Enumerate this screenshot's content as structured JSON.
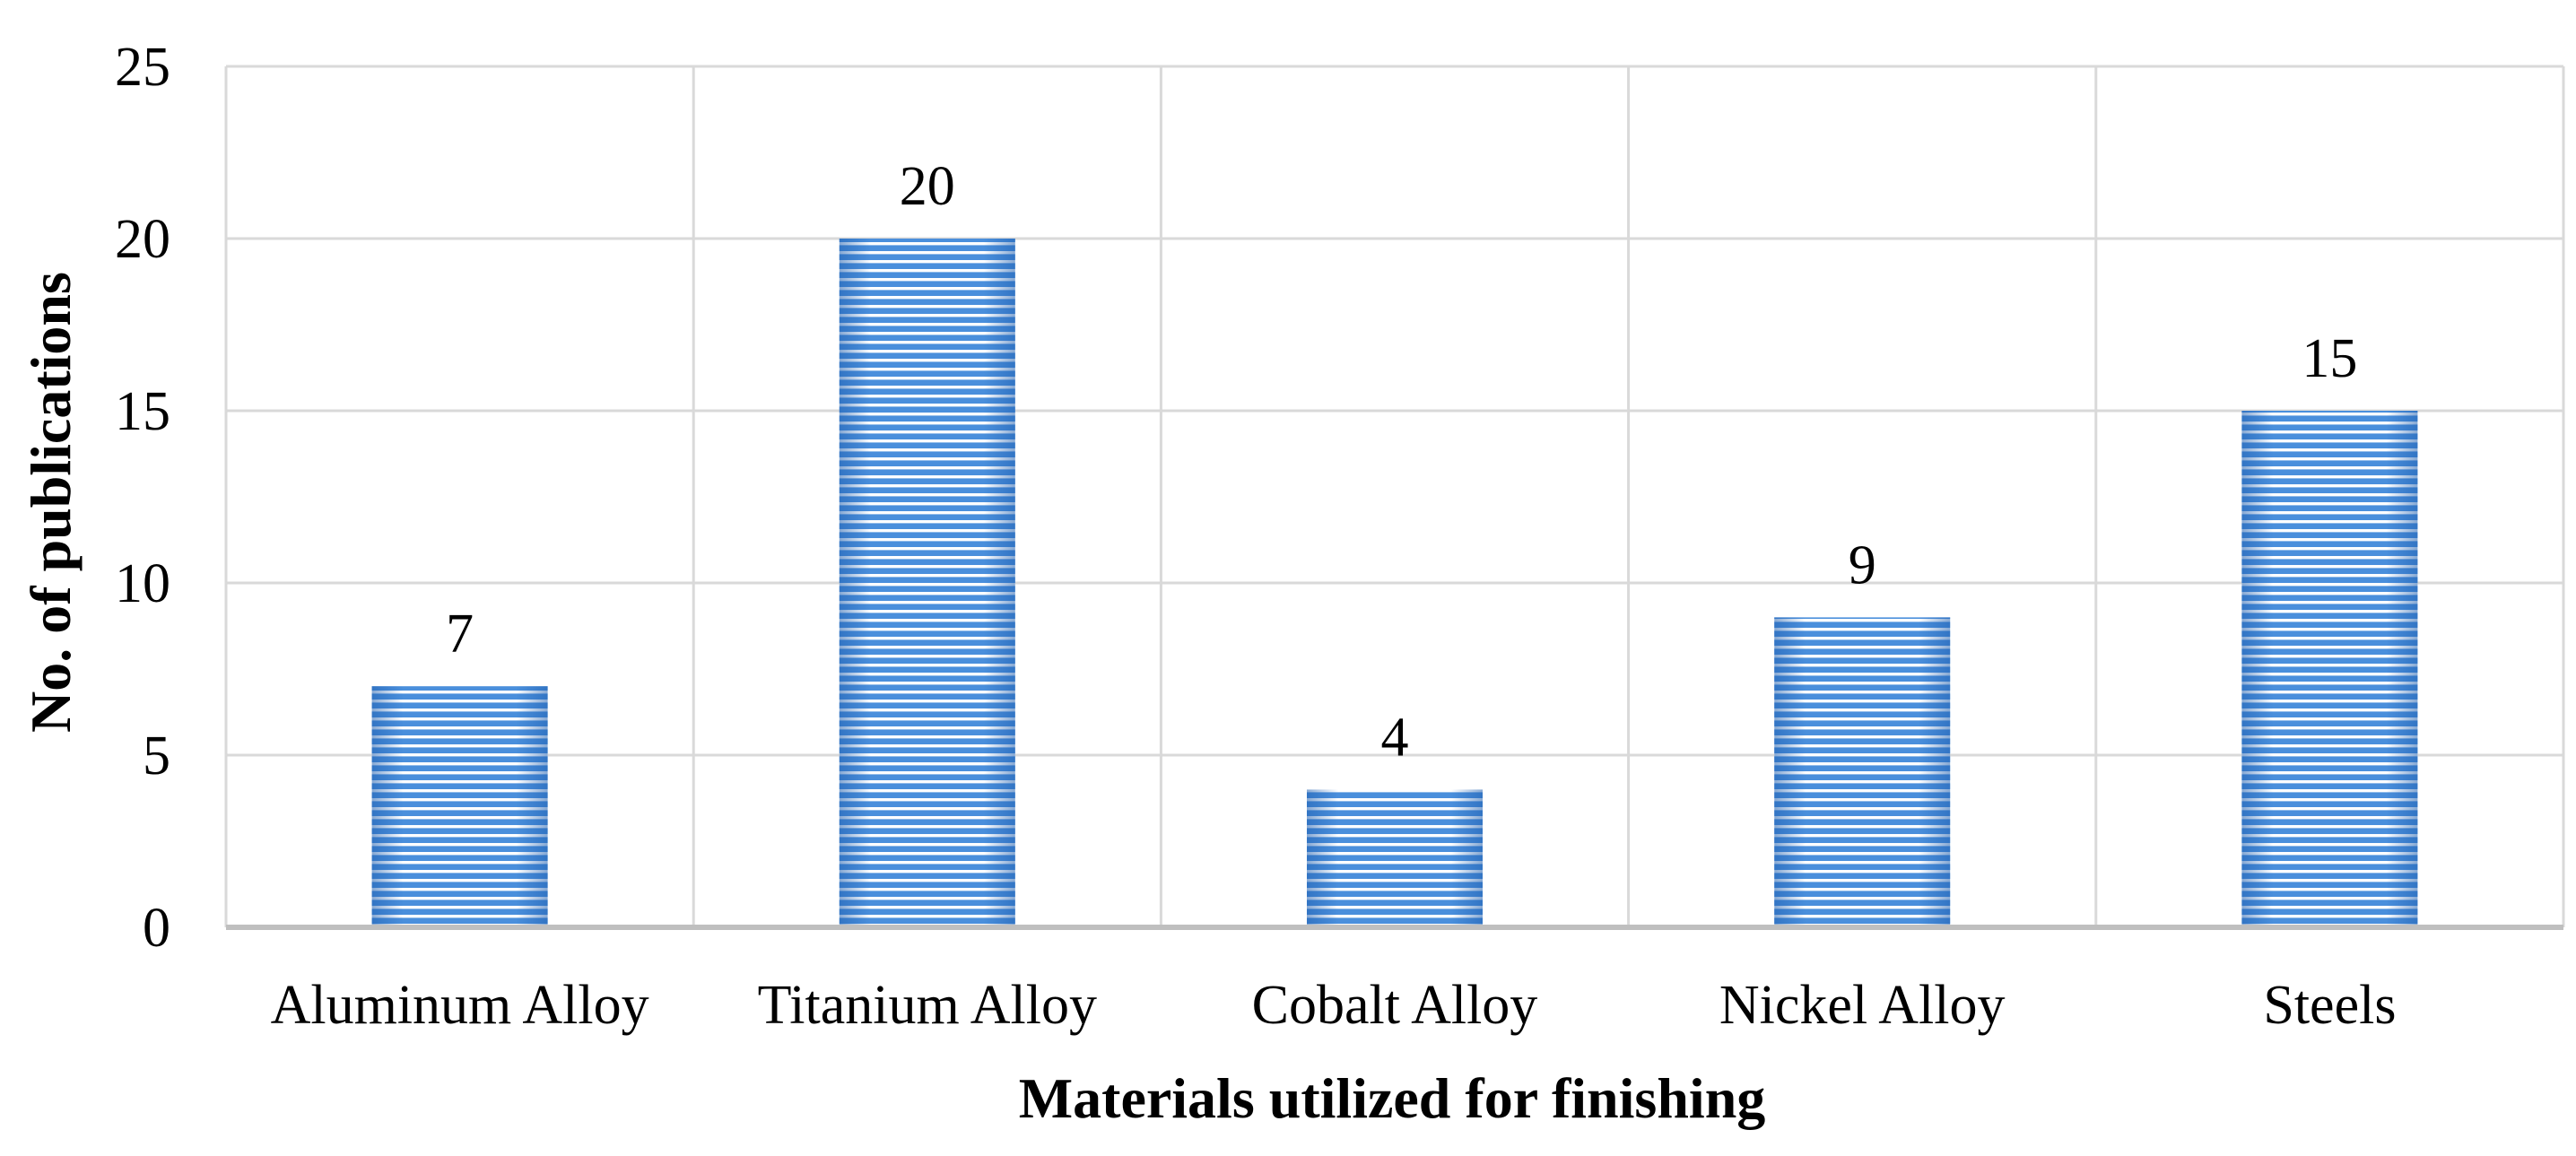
{
  "chart_data": {
    "type": "bar",
    "categories": [
      "Aluminum Alloy",
      "Titanium Alloy",
      "Cobalt Alloy",
      "Nickel Alloy",
      "Steels"
    ],
    "values": [
      7,
      20,
      4,
      9,
      15
    ],
    "data_labels": [
      "7",
      "20",
      "4",
      "9",
      "15"
    ],
    "title": "",
    "xlabel": "Materials utilized for finishing",
    "ylabel": "No. of publications",
    "ylim": [
      0,
      25
    ],
    "yticks": [
      "0",
      "5",
      "10",
      "15",
      "20",
      "25"
    ],
    "grid": true,
    "legend": "none",
    "bar_color": "#4a8fdc",
    "bar_stripe_color": "#ffffff",
    "bar_pattern": "horizontal-stripes"
  }
}
